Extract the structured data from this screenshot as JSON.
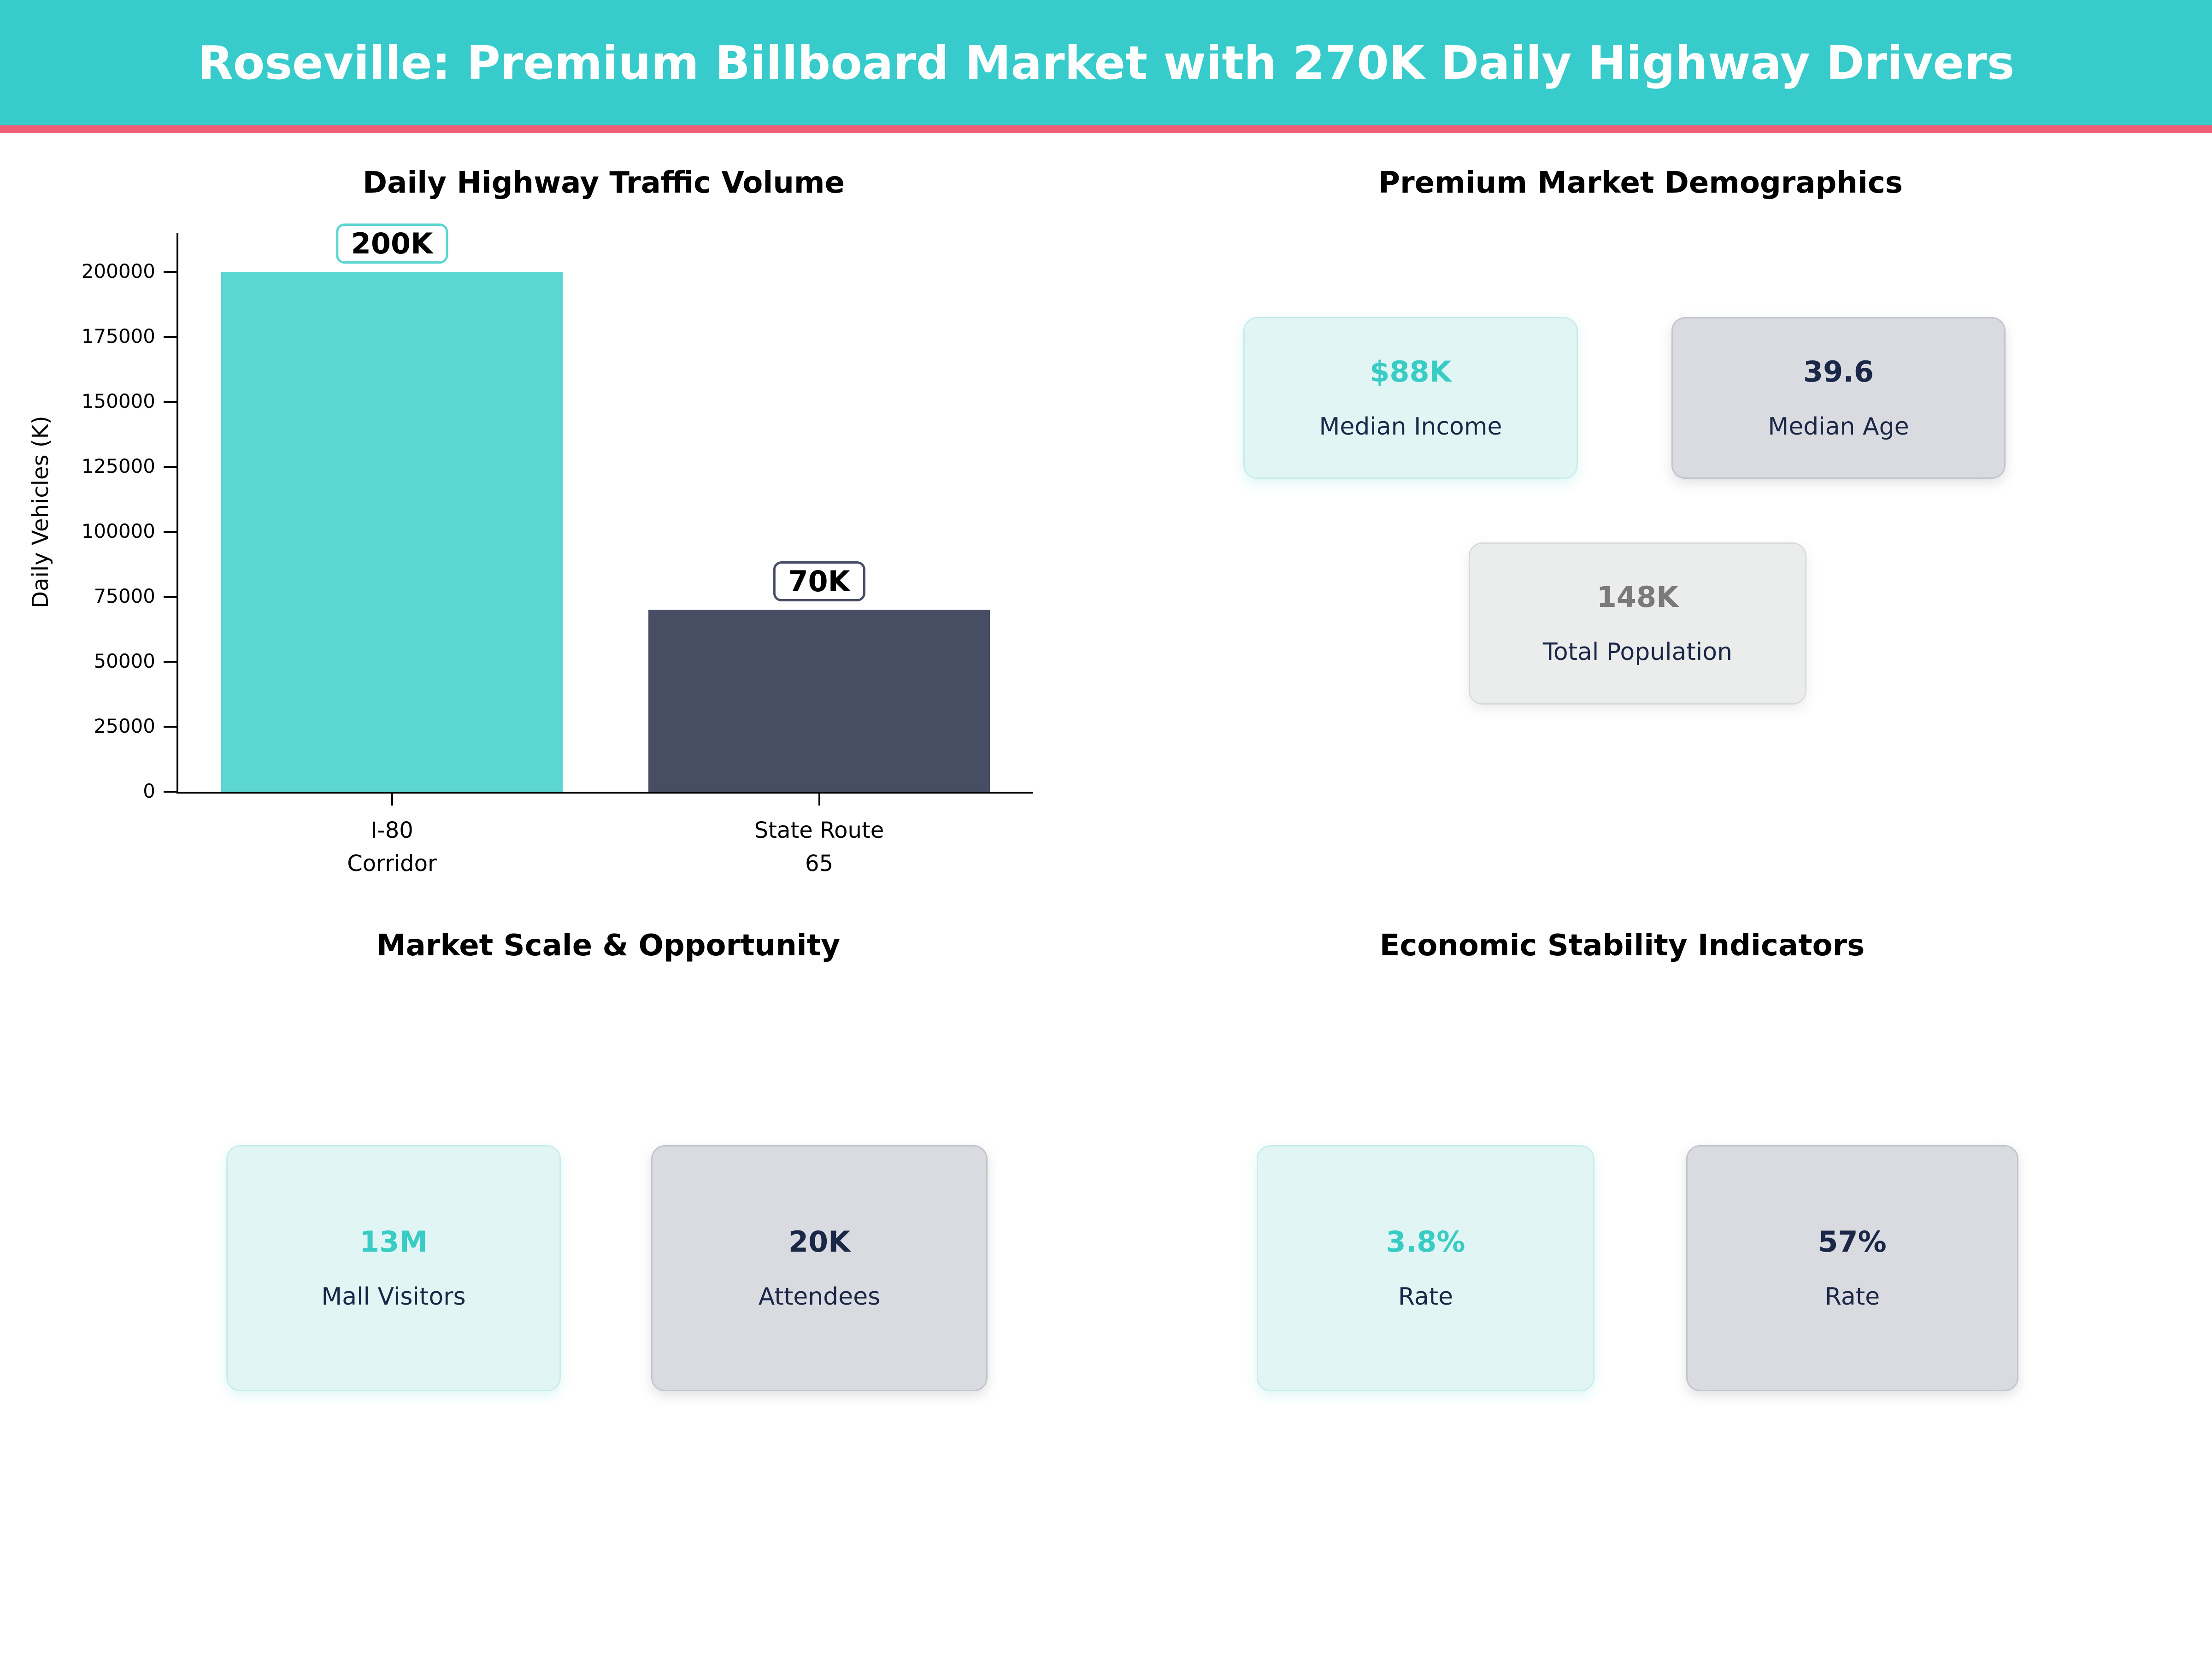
{
  "header": {
    "title": "Roseville: Premium Billboard Market with 270K Daily Highway Drivers",
    "bg_color": "#37CBCB",
    "accent_line_color": "#EF5E76"
  },
  "chart_data": {
    "type": "bar",
    "title": "Daily Highway Traffic Volume",
    "categories": [
      "I-80\nCorridor",
      "State Route\n65"
    ],
    "values": [
      200000,
      70000
    ],
    "bar_labels": [
      "200K",
      "70K"
    ],
    "bar_colors": [
      "#5CD6D1",
      "#474D63"
    ],
    "xlabel": "",
    "ylabel": "Daily Vehicles (K)",
    "yticks": [
      0,
      25000,
      50000,
      75000,
      100000,
      125000,
      150000,
      175000,
      200000
    ],
    "ylim": [
      0,
      215000
    ],
    "grid": false
  },
  "sections": {
    "demographics": {
      "title": "Premium Market Demographics",
      "cards": [
        {
          "value": "$88K",
          "label": "Median Income",
          "value_color": "#38CCC4",
          "bg": "#E1F6F4"
        },
        {
          "value": "39.6",
          "label": "Median Age",
          "value_color": "#1B2747",
          "bg": "#D9DBE0"
        },
        {
          "value": "148K",
          "label": "Total Population",
          "value_color": "#7A7A7A",
          "bg": "#EBECEC"
        }
      ]
    },
    "market_scale": {
      "title": "Market Scale & Opportunity",
      "cards": [
        {
          "value": "13M",
          "label": "Mall Visitors",
          "value_color": "#38CCC4",
          "bg": "#E1F6F4"
        },
        {
          "value": "20K",
          "label": "Attendees",
          "value_color": "#1B2747",
          "bg": "#D9DBE0"
        }
      ]
    },
    "economic": {
      "title": "Economic Stability Indicators",
      "cards": [
        {
          "value": "3.8%",
          "label": "Rate",
          "value_color": "#38CCC4",
          "bg": "#E1F6F4"
        },
        {
          "value": "57%",
          "label": "Rate",
          "value_color": "#1B2747",
          "bg": "#D9DBE0"
        }
      ]
    }
  }
}
